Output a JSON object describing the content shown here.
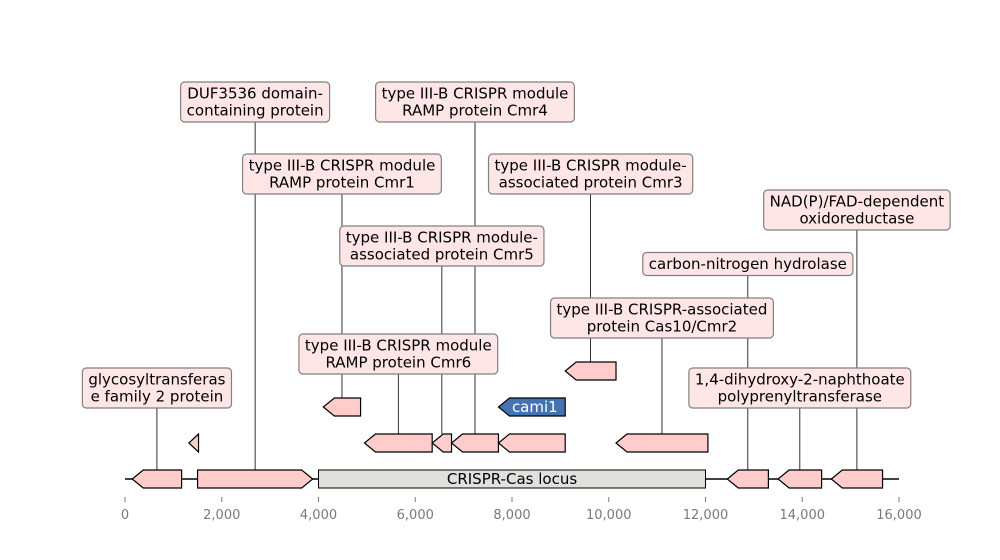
{
  "figure": {
    "type": "gene-locus-map",
    "x_axis": {
      "range": [
        0,
        16000
      ],
      "ticks": [
        0,
        2000,
        4000,
        6000,
        8000,
        10000,
        12000,
        14000,
        16000
      ],
      "tick_labels": [
        "0",
        "2,000",
        "4,000",
        "6,000",
        "8,000",
        "10,000",
        "12,000",
        "14,000",
        "16,000"
      ]
    },
    "backbone": {
      "start": 0,
      "end": 16000
    },
    "locus": {
      "label": "CRISPR-Cas locus",
      "start": 4000,
      "end": 12000,
      "color": "#e0e0dc"
    },
    "colors": {
      "gene_fill": "#ffcccc",
      "highlight_fill": "#4572b0",
      "label_box_fill": "#ffe6e6",
      "label_box_border": "#808080"
    },
    "genes": [
      {
        "id": "g1",
        "start": 150,
        "end": 1170,
        "strand": -1,
        "row": 0,
        "label": [
          "glycosyltransferas",
          "e family 2 protein"
        ]
      },
      {
        "id": "g2",
        "start": 1500,
        "end": 3880,
        "strand": 1,
        "row": 0,
        "label": [
          "DUF3536 domain-",
          "containing protein"
        ]
      },
      {
        "id": "g3",
        "start": 1320,
        "end": 1520,
        "strand": -1,
        "row": 1
      },
      {
        "id": "g4",
        "start": 4950,
        "end": 6350,
        "strand": -1,
        "row": 1,
        "label": [
          "type III-B CRISPR module",
          "RAMP protein Cmr6"
        ]
      },
      {
        "id": "g5",
        "start": 6350,
        "end": 6750,
        "strand": -1,
        "row": 1,
        "label": [
          "type III-B CRISPR module-",
          "associated protein Cmr5"
        ]
      },
      {
        "id": "g6",
        "start": 6750,
        "end": 7720,
        "strand": -1,
        "row": 1,
        "label": [
          "type III-B CRISPR module",
          "RAMP protein Cmr4"
        ]
      },
      {
        "id": "g7",
        "start": 7720,
        "end": 9100,
        "strand": -1,
        "row": 1
      },
      {
        "id": "g8",
        "start": 10150,
        "end": 12050,
        "strand": -1,
        "row": 1,
        "label": [
          "type III-B CRISPR-associated",
          "protein Cas10/Cmr2"
        ]
      },
      {
        "id": "g9",
        "start": 4100,
        "end": 4870,
        "strand": -1,
        "row": 2,
        "label": [
          "type III-B CRISPR module",
          "RAMP protein Cmr1"
        ]
      },
      {
        "id": "g10",
        "start": 7720,
        "end": 9100,
        "strand": -1,
        "row": 2,
        "highlight": true,
        "inner_label": "cami1"
      },
      {
        "id": "g11",
        "start": 9100,
        "end": 10150,
        "strand": -1,
        "row": 3,
        "label": [
          "type III-B CRISPR module-",
          "associated protein Cmr3"
        ]
      },
      {
        "id": "g12",
        "start": 12450,
        "end": 13300,
        "strand": -1,
        "row": 0,
        "label": [
          "carbon-nitrogen hydrolase"
        ]
      },
      {
        "id": "g13",
        "start": 13500,
        "end": 14400,
        "strand": -1,
        "row": 0,
        "label": [
          "1,4-dihydroxy-2-naphthoate",
          "polyprenyltransferase"
        ]
      },
      {
        "id": "g14",
        "start": 14600,
        "end": 15660,
        "strand": -1,
        "row": 0,
        "label": [
          "NAD(P)/FAD-dependent",
          "oxidoreductase"
        ]
      }
    ],
    "labels": [
      {
        "gene": "g1",
        "text": [
          "glycosyltransferas",
          "e family 2 protein"
        ]
      },
      {
        "gene": "g2",
        "text": [
          "DUF3536 domain-",
          "containing protein"
        ]
      },
      {
        "gene": "g6",
        "text": [
          "type III-B CRISPR module",
          "RAMP protein Cmr4"
        ]
      },
      {
        "gene": "g9",
        "text": [
          "type III-B CRISPR module",
          "RAMP protein Cmr1"
        ]
      },
      {
        "gene": "g11",
        "text": [
          "type III-B CRISPR module-",
          "associated protein Cmr3"
        ]
      },
      {
        "gene": "g5",
        "text": [
          "type III-B CRISPR module-",
          "associated protein Cmr5"
        ]
      },
      {
        "gene": "g14",
        "text": [
          "NAD(P)/FAD-dependent",
          "oxidoreductase"
        ]
      },
      {
        "gene": "g12",
        "text": [
          "carbon-nitrogen hydrolase"
        ]
      },
      {
        "gene": "g8",
        "text": [
          "type III-B CRISPR-associated",
          "protein Cas10/Cmr2"
        ]
      },
      {
        "gene": "g4",
        "text": [
          "type III-B CRISPR module",
          "RAMP protein Cmr6"
        ]
      },
      {
        "gene": "g13",
        "text": [
          "1,4-dihydroxy-2-naphthoate",
          "polyprenyltransferase"
        ]
      }
    ]
  }
}
